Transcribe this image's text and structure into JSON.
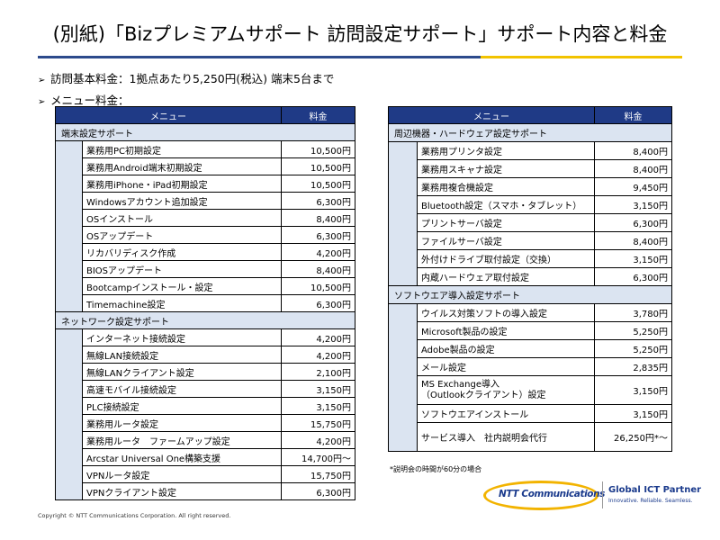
{
  "title": "(別紙)「Bizプレミアムサポート 訪問設定サポート」サポート内容と料金",
  "bullets": {
    "base_fee": "訪問基本料金：1拠点あたり5,250円(税込) 端末5台まで",
    "menu_fee": "メニュー料金："
  },
  "left_table": {
    "header_menu": "メニュー",
    "header_price": "料金",
    "sections": [
      {
        "name": "端末設定サポート",
        "rows": [
          {
            "item": "業務用PC初期設定",
            "price": "10,500円"
          },
          {
            "item": "業務用Android端末初期設定",
            "price": "10,500円"
          },
          {
            "item": "業務用iPhone・iPad初期設定",
            "price": "10,500円"
          },
          {
            "item": "Windowsアカウント追加設定",
            "price": "6,300円"
          },
          {
            "item": "OSインストール",
            "price": "8,400円"
          },
          {
            "item": "OSアップデート",
            "price": "6,300円"
          },
          {
            "item": "リカバリディスク作成",
            "price": "4,200円"
          },
          {
            "item": "BIOSアップデート",
            "price": "8,400円"
          },
          {
            "item": "Bootcampインストール・設定",
            "price": "10,500円"
          },
          {
            "item": "Timemachine設定",
            "price": "6,300円"
          }
        ]
      },
      {
        "name": "ネットワーク設定サポート",
        "rows": [
          {
            "item": "インターネット接続設定",
            "price": "4,200円"
          },
          {
            "item": "無線LAN接続設定",
            "price": "4,200円"
          },
          {
            "item": "無線LANクライアント設定",
            "price": "2,100円"
          },
          {
            "item": "高速モバイル接続設定",
            "price": "3,150円"
          },
          {
            "item": "PLC接続設定",
            "price": "3,150円"
          },
          {
            "item": "業務用ルータ設定",
            "price": "15,750円"
          },
          {
            "item": "業務用ルータ　ファームアップ設定",
            "price": "4,200円"
          },
          {
            "item": "Arcstar Universal One構築支援",
            "price": "14,700円～"
          },
          {
            "item": "VPNルータ設定",
            "price": "15,750円"
          },
          {
            "item": "VPNクライアント設定",
            "price": "6,300円"
          }
        ]
      }
    ]
  },
  "right_table": {
    "header_menu": "メニュー",
    "header_price": "料金",
    "sections": [
      {
        "name": "周辺機器・ハードウェア設定サポート",
        "rows": [
          {
            "item": "業務用プリンタ設定",
            "price": "8,400円"
          },
          {
            "item": "業務用スキャナ設定",
            "price": "8,400円"
          },
          {
            "item": "業務用複合機設定",
            "price": "9,450円"
          },
          {
            "item": "Bluetooth設定（スマホ・タブレット）",
            "price": "3,150円"
          },
          {
            "item": "プリントサーバ設定",
            "price": "6,300円"
          },
          {
            "item": "ファイルサーバ設定",
            "price": "8,400円"
          },
          {
            "item": "外付けドライブ取付設定（交換）",
            "price": "3,150円"
          },
          {
            "item": "内蔵ハードウェア取付設定",
            "price": "6,300円"
          }
        ]
      },
      {
        "name": "ソフトウエア導入設定サポート",
        "rows": [
          {
            "item": "ウイルス対策ソフトの導入設定",
            "price": "3,780円"
          },
          {
            "item": "Microsoft製品の設定",
            "price": "5,250円"
          },
          {
            "item": "Adobe製品の設定",
            "price": "5,250円"
          },
          {
            "item": "メール設定",
            "price": "2,835円"
          },
          {
            "item": "MS Exchange導入\n（Outlookクライアント）設定",
            "price": "3,150円"
          },
          {
            "item": "ソフトウエアインストール",
            "price": "3,150円"
          },
          {
            "item": "サービス導入　社内説明会代行",
            "price": "26,250円*～"
          }
        ]
      }
    ]
  },
  "note": "*説明会の時間が60分の場合",
  "copyright": "Copyright © NTT Communications Corporation. All right reserved.",
  "logo": {
    "brand": "NTT Communications",
    "tagline_main": "Global ICT Partner",
    "tagline_sub": "Innovative. Reliable. Seamless."
  },
  "colors": {
    "header_blue": "#1f3a86",
    "light_blue": "#dbe4f1",
    "rule_blue": "#2c4a8c",
    "rule_yellow": "#f2c300"
  }
}
